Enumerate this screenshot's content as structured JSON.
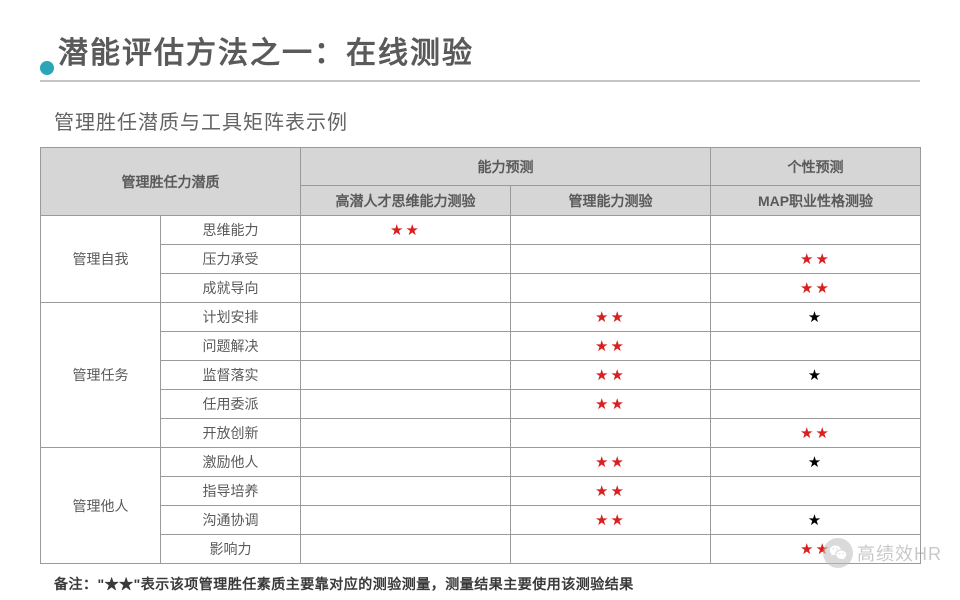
{
  "title": "潜能评估方法之一：在线测验",
  "subtitle": "管理胜任潜质与工具矩阵表示例",
  "header": {
    "col1": "管理胜任力潜质",
    "group_ability": "能力预测",
    "group_personality": "个性预测",
    "sub1": "高潜人才思维能力测验",
    "sub2": "管理能力测验",
    "sub3": "MAP职业性格测验"
  },
  "groups": [
    {
      "name": "管理自我",
      "rows": [
        {
          "label": "思维能力",
          "c1": "★★",
          "c1_color": "red",
          "c2": "",
          "c3": ""
        },
        {
          "label": "压力承受",
          "c1": "",
          "c2": "",
          "c3": "★★",
          "c3_color": "red"
        },
        {
          "label": "成就导向",
          "c1": "",
          "c2": "",
          "c3": "★★",
          "c3_color": "red"
        }
      ]
    },
    {
      "name": "管理任务",
      "rows": [
        {
          "label": "计划安排",
          "c1": "",
          "c2": "★★",
          "c2_color": "red",
          "c3": "★",
          "c3_color": "black"
        },
        {
          "label": "问题解决",
          "c1": "",
          "c2": "★★",
          "c2_color": "red",
          "c3": ""
        },
        {
          "label": "监督落实",
          "c1": "",
          "c2": "★★",
          "c2_color": "red",
          "c3": "★",
          "c3_color": "black"
        },
        {
          "label": "任用委派",
          "c1": "",
          "c2": "★★",
          "c2_color": "red",
          "c3": ""
        },
        {
          "label": "开放创新",
          "c1": "",
          "c2": "",
          "c3": "★★",
          "c3_color": "red"
        }
      ]
    },
    {
      "name": "管理他人",
      "rows": [
        {
          "label": "激励他人",
          "c1": "",
          "c2": "★★",
          "c2_color": "red",
          "c3": "★",
          "c3_color": "black"
        },
        {
          "label": "指导培养",
          "c1": "",
          "c2": "★★",
          "c2_color": "red",
          "c3": ""
        },
        {
          "label": "沟通协调",
          "c1": "",
          "c2": "★★",
          "c2_color": "red",
          "c3": "★",
          "c3_color": "black"
        },
        {
          "label": "影响力",
          "c1": "",
          "c2": "",
          "c3": "★★",
          "c3_color": "red"
        }
      ]
    }
  ],
  "footnote": "备注：\"★★\"表示该项管理胜任素质主要靠对应的测验测量，测量结果主要使用该测验结果",
  "watermark": "高绩效HR",
  "colors": {
    "title": "#5a5a5a",
    "underline": "#c5c5c5",
    "dot": "#2aa6b8",
    "header_bg": "#d6d6d6",
    "border": "#9a9a9a",
    "star_red": "#d8201f",
    "star_black": "#000000",
    "background": "#ffffff"
  }
}
